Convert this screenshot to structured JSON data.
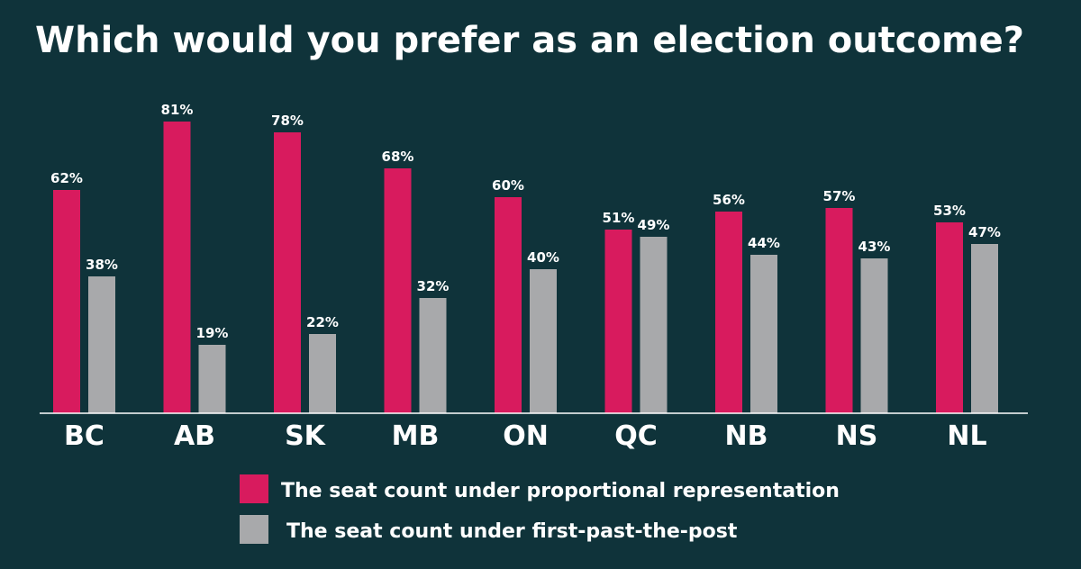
{
  "chart_data": {
    "type": "bar",
    "title": "Which would you prefer as an election outcome?",
    "categories": [
      "BC",
      "AB",
      "SK",
      "MB",
      "ON",
      "QC",
      "NB",
      "NS",
      "NL"
    ],
    "series": [
      {
        "name": "The seat count under proportional representation",
        "color": "#d81b5e",
        "values": [
          62,
          81,
          78,
          68,
          60,
          51,
          56,
          57,
          53
        ],
        "labels": [
          "62%",
          "81%",
          "78%",
          "68%",
          "60%",
          "51%",
          "56%",
          "57%",
          "53%"
        ]
      },
      {
        "name": "The seat count under first-past-the-post",
        "color": "#a8a9ab",
        "values": [
          38,
          19,
          22,
          32,
          40,
          49,
          44,
          43,
          47
        ],
        "labels": [
          "38%",
          "19%",
          "22%",
          "32%",
          "40%",
          "49%",
          "44%",
          "43%",
          "47%"
        ]
      }
    ],
    "ylim": [
      0,
      100
    ],
    "grid": false,
    "legend_position": "bottom-center"
  },
  "colors": {
    "background": "#0f333a",
    "text": "#ffffff",
    "axis": "#ffffff"
  }
}
